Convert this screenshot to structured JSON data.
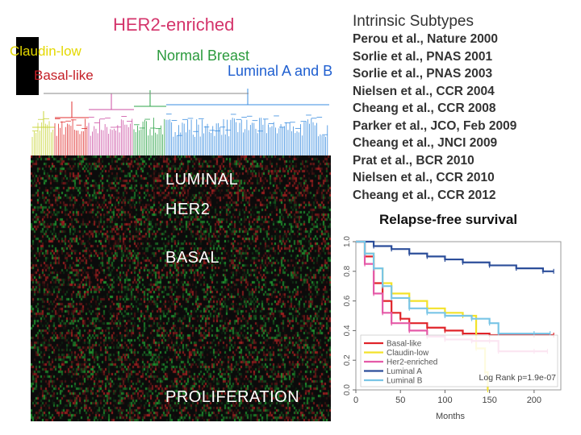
{
  "title": "Intrinsic Subtypes",
  "references": [
    "Perou et al., Nature 2000",
    "Sorlie et al., PNAS 2001",
    "Sorlie et al., PNAS 2003",
    "Nielsen et al., CCR 2004",
    "Cheang et al., CCR 2008",
    "Parker et al., JCO, Feb 2009",
    "Cheang et al., JNCI 2009",
    "Prat et al., BCR 2010",
    "Nielsen et al., CCR 2010",
    "Cheang et al., CCR 2012"
  ],
  "cluster_labels": {
    "her2": "HER2-enriched",
    "claudin": "Claudin-low",
    "basal": "Basal-like",
    "normal": "Normal Breast",
    "luminal": "Luminal A and B"
  },
  "heatmap_labels": {
    "luminal": "LUMINAL",
    "her2": "HER2",
    "basal": "BASAL",
    "prolif": "PROLIFERATION"
  },
  "survival_title": "Relapse-free survival",
  "chart_data": {
    "type": "line",
    "xlabel": "Months",
    "ylabel": "",
    "xlim": [
      0,
      230
    ],
    "ylim": [
      0,
      1.0
    ],
    "x_ticks": [
      "0",
      "50",
      "100",
      "150",
      "200"
    ],
    "y_ticks": [
      "0.0",
      "0.2",
      "0.4",
      "0.6",
      "0.8",
      "1.0"
    ],
    "annotation": "Log Rank p=1.9e-07",
    "legend_position": "bottom-left",
    "series": [
      {
        "name": "Basal-like",
        "color": "#e0242a",
        "points": [
          [
            0,
            1.0
          ],
          [
            10,
            0.9
          ],
          [
            20,
            0.72
          ],
          [
            30,
            0.6
          ],
          [
            40,
            0.52
          ],
          [
            50,
            0.48
          ],
          [
            60,
            0.45
          ],
          [
            80,
            0.42
          ],
          [
            100,
            0.4
          ],
          [
            120,
            0.38
          ],
          [
            150,
            0.37
          ],
          [
            200,
            0.37
          ],
          [
            222,
            0.37
          ]
        ]
      },
      {
        "name": "Claudin-low",
        "color": "#f3e22a",
        "points": [
          [
            0,
            1.0
          ],
          [
            10,
            0.92
          ],
          [
            20,
            0.82
          ],
          [
            30,
            0.72
          ],
          [
            40,
            0.65
          ],
          [
            60,
            0.6
          ],
          [
            80,
            0.55
          ],
          [
            100,
            0.52
          ],
          [
            120,
            0.5
          ],
          [
            135,
            0.28
          ],
          [
            145,
            0.12
          ],
          [
            148,
            0.0
          ]
        ]
      },
      {
        "name": "Her2-enriched",
        "color": "#e55aa8",
        "points": [
          [
            0,
            1.0
          ],
          [
            10,
            0.85
          ],
          [
            20,
            0.65
          ],
          [
            30,
            0.52
          ],
          [
            40,
            0.45
          ],
          [
            60,
            0.4
          ],
          [
            80,
            0.36
          ],
          [
            100,
            0.34
          ],
          [
            130,
            0.33
          ],
          [
            150,
            0.33
          ],
          [
            160,
            0.26
          ],
          [
            200,
            0.26
          ],
          [
            215,
            0.26
          ]
        ]
      },
      {
        "name": "Luminal A",
        "color": "#2c4e9a",
        "points": [
          [
            0,
            1.0
          ],
          [
            20,
            0.97
          ],
          [
            40,
            0.95
          ],
          [
            60,
            0.92
          ],
          [
            80,
            0.9
          ],
          [
            100,
            0.88
          ],
          [
            120,
            0.86
          ],
          [
            150,
            0.84
          ],
          [
            180,
            0.82
          ],
          [
            210,
            0.8
          ],
          [
            222,
            0.8
          ]
        ]
      },
      {
        "name": "Luminal B",
        "color": "#79c5e6",
        "points": [
          [
            0,
            1.0
          ],
          [
            10,
            0.92
          ],
          [
            20,
            0.82
          ],
          [
            30,
            0.7
          ],
          [
            40,
            0.62
          ],
          [
            60,
            0.55
          ],
          [
            80,
            0.52
          ],
          [
            100,
            0.5
          ],
          [
            130,
            0.48
          ],
          [
            150,
            0.45
          ],
          [
            160,
            0.38
          ],
          [
            200,
            0.38
          ],
          [
            218,
            0.38
          ]
        ]
      }
    ]
  }
}
